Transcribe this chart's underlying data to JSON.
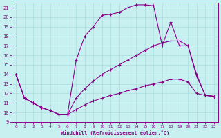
{
  "xlabel": "Windchill (Refroidissement éolien,°C)",
  "bg_color": "#c8f0f0",
  "line_color": "#880088",
  "grid_color": "#aadddd",
  "xlim": [
    -0.5,
    23.5
  ],
  "ylim": [
    9,
    21.5
  ],
  "yticks": [
    9,
    10,
    11,
    12,
    13,
    14,
    15,
    16,
    17,
    18,
    19,
    20,
    21
  ],
  "xticks": [
    0,
    1,
    2,
    3,
    4,
    5,
    6,
    7,
    8,
    9,
    10,
    11,
    12,
    13,
    14,
    15,
    16,
    17,
    18,
    19,
    20,
    21,
    22,
    23
  ],
  "curve1_x": [
    0,
    1,
    2,
    3,
    4,
    5,
    6,
    7,
    8,
    9,
    10,
    11,
    12,
    13,
    14,
    15,
    16,
    17,
    18,
    19,
    20,
    21,
    22,
    23
  ],
  "curve1_y": [
    14,
    11.5,
    11,
    10.5,
    10.2,
    9.8,
    9.8,
    10.3,
    10.8,
    11.2,
    11.5,
    11.8,
    12.0,
    12.3,
    12.5,
    12.8,
    13.0,
    13.2,
    13.5,
    13.5,
    13.2,
    12.0,
    11.8,
    11.7
  ],
  "curve2_x": [
    0,
    1,
    2,
    3,
    4,
    5,
    6,
    7,
    8,
    9,
    10,
    11,
    12,
    13,
    14,
    15,
    16,
    17,
    18,
    19,
    20,
    21,
    22,
    23
  ],
  "curve2_y": [
    14,
    11.5,
    11,
    10.5,
    10.2,
    9.8,
    9.8,
    15.5,
    18.0,
    19.0,
    20.2,
    20.3,
    20.5,
    21.0,
    21.3,
    21.3,
    21.2,
    17.0,
    19.5,
    17.0,
    17.0,
    13.8,
    11.8,
    11.7
  ],
  "curve3_x": [
    0,
    1,
    2,
    3,
    4,
    5,
    6,
    7,
    8,
    9,
    10,
    11,
    12,
    13,
    14,
    15,
    16,
    17,
    18,
    19,
    20,
    21,
    22,
    23
  ],
  "curve3_y": [
    14,
    11.5,
    11,
    10.5,
    10.2,
    9.8,
    9.8,
    11.5,
    12.5,
    13.3,
    14.0,
    14.5,
    15.0,
    15.5,
    16.0,
    16.5,
    17.0,
    17.3,
    17.5,
    17.5,
    17.0,
    14.0,
    11.8,
    11.7
  ]
}
